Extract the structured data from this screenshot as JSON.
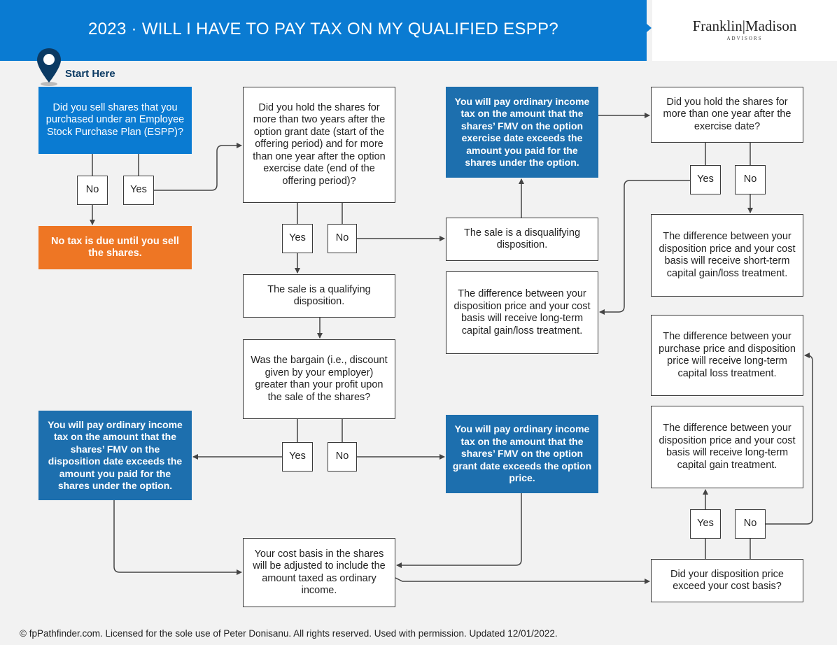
{
  "header": {
    "title": "2023 · WILL I HAVE TO PAY TAX ON MY QUALIFIED ESPP?",
    "logo_name": "Franklin|Madison",
    "logo_sub": "ADVISORS"
  },
  "start_label": "Start Here",
  "nodes": {
    "q_sold": "Did you sell shares that you purchased under an Employee Stock Purchase Plan (ESPP)?",
    "no_tax": "No tax is due until you sell the shares.",
    "q_held": "Did you hold the shares for more than two years after the option grant date (start of the offering period) and for more than one year after the option exercise date (end of the offering period)?",
    "qualifying": "The sale is a qualifying disposition.",
    "q_bargain": "Was the bargain (i.e., discount given by your employer) greater than your profit upon the sale of the shares?",
    "ord_disposition": "You will pay ordinary income tax on the amount that the shares’ FMV on the disposition date exceeds the amount you paid for the shares under the option.",
    "ord_grant": "You will pay ordinary income tax on the amount that the shares’ FMV on the option grant date exceeds the option price.",
    "cost_basis": "Your cost basis in the shares will be adjusted to include the amount taxed as ordinary income.",
    "ord_exercise": "You will pay ordinary income tax on the amount that the shares’ FMV on the option exercise date exceeds the amount you paid for the shares under the option.",
    "disqualifying": "The sale is a disqualifying disposition.",
    "lt_gain_loss": "The difference between your disposition price and your cost basis will receive long-term capital gain/loss treatment.",
    "q_one_year": "Did you hold the shares for more than one year after the exercise date?",
    "st_gain_loss": "The difference between your disposition price and your cost basis will receive short-term capital gain/loss treatment.",
    "lt_loss": "The difference between your purchase price and disposition price will receive long-term capital loss treatment.",
    "lt_gain": "The difference between your disposition price and your cost basis will receive long-term capital gain treatment.",
    "q_exceed": "Did your disposition price exceed your cost basis?"
  },
  "yes": "Yes",
  "no": "No",
  "footer": "© fpPathfinder.com. Licensed for the sole use of Peter Donisanu. All rights reserved. Used with permission. Updated 12/01/2022."
}
